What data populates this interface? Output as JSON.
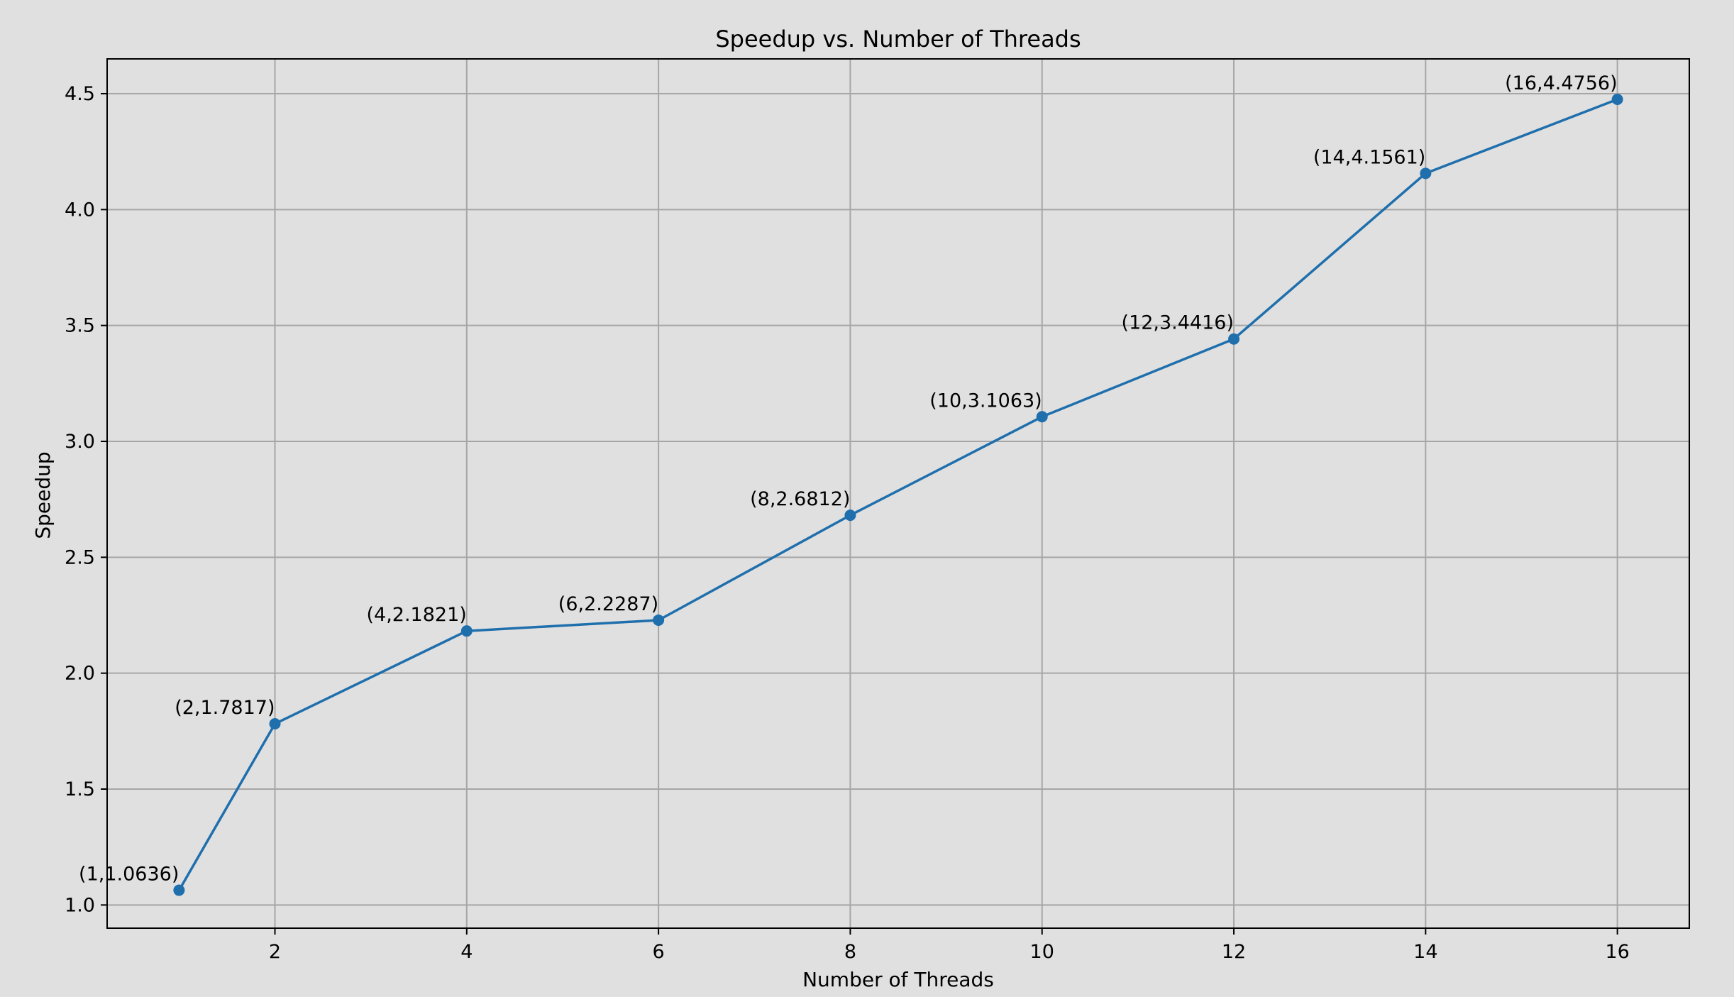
{
  "chart_data": {
    "type": "line",
    "title": "Speedup vs. Number of Threads",
    "xlabel": "Number of Threads",
    "ylabel": "Speedup",
    "xlim": [
      0.25,
      16.75
    ],
    "ylim": [
      0.9,
      4.65
    ],
    "xticks": [
      2,
      4,
      6,
      8,
      10,
      12,
      14,
      16
    ],
    "yticks": [
      1.0,
      1.5,
      2.0,
      2.5,
      3.0,
      3.5,
      4.0,
      4.5
    ],
    "ytick_labels": [
      "1.0",
      "1.5",
      "2.0",
      "2.5",
      "3.0",
      "3.5",
      "4.0",
      "4.5"
    ],
    "grid": true,
    "line_color": "#1f6fad",
    "background": "#e0e0e0",
    "series": [
      {
        "x": [
          1,
          2,
          4,
          6,
          8,
          10,
          12,
          14,
          16
        ],
        "values": [
          1.0636,
          1.7817,
          2.1821,
          2.2287,
          2.6812,
          3.1063,
          3.4416,
          4.1561,
          4.4756
        ],
        "labels": [
          "(1,1.0636)",
          "(2,1.7817)",
          "(4,2.1821)",
          "(6,2.2287)",
          "(8,2.6812)",
          "(10,3.1063)",
          "(12,3.4416)",
          "(14,4.1561)",
          "(16,4.4756)"
        ]
      }
    ]
  }
}
